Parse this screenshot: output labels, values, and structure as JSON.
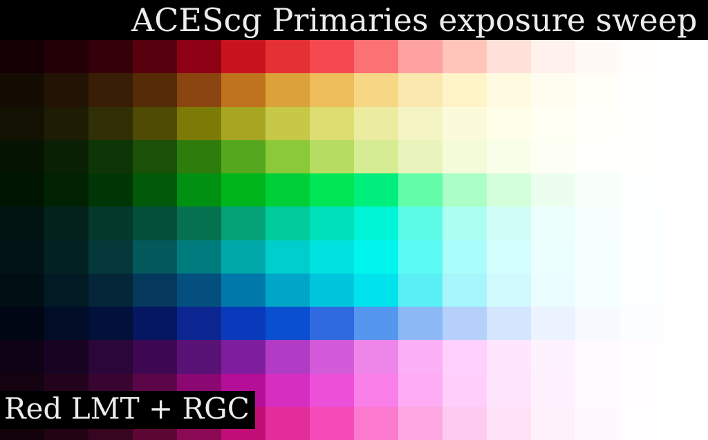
{
  "title": "ACEScg Primaries exposure sweep",
  "label": "Red LMT + RGC",
  "grid": {
    "rows": [
      {
        "hue": "red",
        "colors": [
          "#140004",
          "#220006",
          "#36000a",
          "#57000e",
          "#8e0014",
          "#c9131f",
          "#e53034",
          "#f54950",
          "#fc7274",
          "#fea1a1",
          "#ffc4ba",
          "#ffe1da",
          "#fff1ec",
          "#fffaf6",
          "#fffefd",
          "#ffffff"
        ]
      },
      {
        "hue": "orange",
        "colors": [
          "#140c02",
          "#221304",
          "#381e05",
          "#552c06",
          "#8b4510",
          "#bf731f",
          "#dca23a",
          "#eebd5b",
          "#f5d785",
          "#fbe8ae",
          "#fff3c8",
          "#fffbe1",
          "#fffdf0",
          "#fffff8",
          "#fffffe",
          "#ffffff"
        ]
      },
      {
        "hue": "yellow",
        "colors": [
          "#121102",
          "#1e1c04",
          "#312f06",
          "#4f4b05",
          "#7d7b07",
          "#a8a523",
          "#c8c848",
          "#dddd72",
          "#ececa0",
          "#f4f4c4",
          "#fbfbdc",
          "#ffffe9",
          "#fffff4",
          "#fffffa",
          "#fffffe",
          "#ffffff"
        ]
      },
      {
        "hue": "yellow-green",
        "colors": [
          "#051302",
          "#0a2004",
          "#0d3506",
          "#1a5008",
          "#2e7d0c",
          "#55a81e",
          "#8cc93a",
          "#b6dd62",
          "#d6ec93",
          "#e8f4bb",
          "#f3fbd9",
          "#f9fee9",
          "#fdfff4",
          "#fefffa",
          "#fffffe",
          "#ffffff"
        ]
      },
      {
        "hue": "green",
        "colors": [
          "#001402",
          "#002203",
          "#003606",
          "#005a09",
          "#009012",
          "#00b51c",
          "#00cf38",
          "#00e654",
          "#00ef7c",
          "#63fdaa",
          "#abffc6",
          "#d3ffdb",
          "#ecffee",
          "#f7fff8",
          "#fcfffd",
          "#ffffff"
        ]
      },
      {
        "hue": "spring-green",
        "colors": [
          "#011410",
          "#02221a",
          "#04382a",
          "#044f39",
          "#06714f",
          "#05a177",
          "#00cc9b",
          "#00e0bb",
          "#00f5d7",
          "#5bfbe6",
          "#abfff1",
          "#d1fff8",
          "#ebfffc",
          "#f6fffe",
          "#fcffff",
          "#ffffff"
        ]
      },
      {
        "hue": "cyan",
        "colors": [
          "#011314",
          "#022122",
          "#04383a",
          "#04595c",
          "#007c7e",
          "#00a8aa",
          "#00cecc",
          "#00e2e0",
          "#00f5ef",
          "#5bfaf5",
          "#a9fdfb",
          "#d3fffe",
          "#ebffff",
          "#f6ffff",
          "#fcffff",
          "#ffffff"
        ]
      },
      {
        "hue": "azure",
        "colors": [
          "#010e14",
          "#021a24",
          "#042638",
          "#04385c",
          "#044f7e",
          "#0079aa",
          "#00a6c8",
          "#00c6dd",
          "#00e3ec",
          "#5aeef5",
          "#a7f6fb",
          "#d0fafe",
          "#eafdff",
          "#f6ffff",
          "#fcffff",
          "#ffffff"
        ]
      },
      {
        "hue": "blue",
        "colors": [
          "#010614",
          "#010c26",
          "#02103c",
          "#041760",
          "#0b2690",
          "#0a3abc",
          "#0a4fd0",
          "#2f6ae0",
          "#5596ee",
          "#8cb8f6",
          "#b4d0fb",
          "#d4e5fe",
          "#ebf3ff",
          "#f6faff",
          "#fcfdff",
          "#ffffff"
        ]
      },
      {
        "hue": "violet",
        "colors": [
          "#0e0214",
          "#180323",
          "#2a0639",
          "#3e0752",
          "#581276",
          "#7e1e9e",
          "#b13bc4",
          "#d35ad8",
          "#ee86ea",
          "#fcb0f8",
          "#ffd0fd",
          "#ffe5fe",
          "#fff2ff",
          "#fffaff",
          "#fffdff",
          "#ffffff"
        ]
      },
      {
        "hue": "magenta",
        "colors": [
          "#140210",
          "#22031b",
          "#380530",
          "#5c064a",
          "#8b0873",
          "#b50e97",
          "#d62ec1",
          "#ec4fd8",
          "#fa7fe8",
          "#feacf4",
          "#ffcefb",
          "#ffe4fd",
          "#fff2fe",
          "#fffaff",
          "#fffdff",
          "#ffffff"
        ]
      },
      {
        "hue": "rose",
        "colors": [
          "#14020b",
          "#220314",
          "#380520",
          "#5c0634",
          "#8b0954",
          "#c10d76",
          "#e22d9a",
          "#f54ab8",
          "#fc79d0",
          "#fea6e2",
          "#ffcaf0",
          "#ffe2f8",
          "#fff1fb",
          "#fff9fd",
          "#fffdfe",
          "#ffffff"
        ]
      }
    ]
  }
}
